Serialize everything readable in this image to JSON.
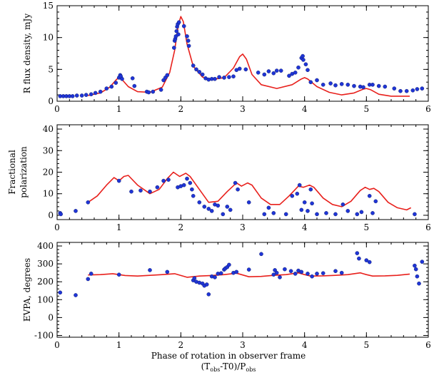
{
  "chart_data": [
    {
      "type": "scatter",
      "ylabel": "R flux density, mJy",
      "xlim": [
        0,
        6
      ],
      "ylim": [
        0,
        15
      ],
      "xticks": [
        0,
        1,
        2,
        3,
        4,
        5,
        6
      ],
      "yticks": [
        0,
        5,
        10,
        15
      ],
      "model": {
        "color": "#e8201c",
        "points": [
          [
            0.5,
            0.9
          ],
          [
            0.7,
            1.3
          ],
          [
            0.85,
            2.2
          ],
          [
            0.95,
            3.3
          ],
          [
            1.0,
            3.8
          ],
          [
            1.05,
            3.4
          ],
          [
            1.15,
            2.3
          ],
          [
            1.3,
            1.5
          ],
          [
            1.5,
            1.4
          ],
          [
            1.7,
            2.2
          ],
          [
            1.82,
            4.5
          ],
          [
            1.9,
            8.0
          ],
          [
            1.96,
            12.0
          ],
          [
            2.0,
            13.3
          ],
          [
            2.04,
            12.5
          ],
          [
            2.1,
            9.0
          ],
          [
            2.2,
            5.5
          ],
          [
            2.35,
            3.8
          ],
          [
            2.5,
            3.4
          ],
          [
            2.7,
            3.7
          ],
          [
            2.85,
            5.2
          ],
          [
            2.95,
            7.0
          ],
          [
            3.0,
            7.4
          ],
          [
            3.06,
            6.6
          ],
          [
            3.15,
            4.2
          ],
          [
            3.3,
            2.6
          ],
          [
            3.55,
            2.0
          ],
          [
            3.8,
            2.6
          ],
          [
            3.95,
            3.5
          ],
          [
            4.0,
            3.7
          ],
          [
            4.05,
            3.5
          ],
          [
            4.2,
            2.3
          ],
          [
            4.4,
            1.4
          ],
          [
            4.6,
            1.0
          ],
          [
            4.8,
            1.3
          ],
          [
            4.95,
            1.9
          ],
          [
            5.0,
            2.0
          ],
          [
            5.07,
            1.8
          ],
          [
            5.2,
            1.1
          ],
          [
            5.4,
            0.8
          ],
          [
            5.7,
            0.8
          ]
        ]
      },
      "observations": {
        "color": "#1f35d6",
        "points": [
          [
            0.05,
            0.8
          ],
          [
            0.1,
            0.8
          ],
          [
            0.15,
            0.8
          ],
          [
            0.2,
            0.8
          ],
          [
            0.25,
            0.8
          ],
          [
            0.32,
            0.9
          ],
          [
            0.4,
            0.9
          ],
          [
            0.47,
            1.0
          ],
          [
            0.55,
            1.1
          ],
          [
            0.62,
            1.3
          ],
          [
            0.7,
            1.5
          ],
          [
            0.8,
            2.0
          ],
          [
            0.88,
            2.3
          ],
          [
            0.95,
            2.9
          ],
          [
            1.0,
            3.7
          ],
          [
            1.02,
            4.1
          ],
          [
            1.03,
            3.9
          ],
          [
            1.05,
            3.5
          ],
          [
            1.22,
            3.6
          ],
          [
            1.25,
            2.4
          ],
          [
            1.45,
            1.5
          ],
          [
            1.48,
            1.4
          ],
          [
            1.55,
            1.5
          ],
          [
            1.68,
            1.8
          ],
          [
            1.72,
            3.3
          ],
          [
            1.75,
            3.7
          ],
          [
            1.78,
            4.1
          ],
          [
            1.89,
            8.4
          ],
          [
            1.9,
            9.5
          ],
          [
            1.91,
            9.8
          ],
          [
            1.92,
            10.2
          ],
          [
            1.93,
            11.0
          ],
          [
            1.94,
            11.7
          ],
          [
            1.95,
            12.1
          ],
          [
            1.96,
            10.5
          ],
          [
            1.97,
            12.4
          ],
          [
            2.05,
            11.8
          ],
          [
            2.1,
            10.2
          ],
          [
            2.12,
            9.5
          ],
          [
            2.13,
            8.7
          ],
          [
            2.2,
            5.6
          ],
          [
            2.25,
            5.0
          ],
          [
            2.3,
            4.6
          ],
          [
            2.35,
            4.2
          ],
          [
            2.4,
            3.6
          ],
          [
            2.45,
            3.4
          ],
          [
            2.5,
            3.5
          ],
          [
            2.55,
            3.5
          ],
          [
            2.62,
            3.8
          ],
          [
            2.7,
            3.7
          ],
          [
            2.78,
            3.8
          ],
          [
            2.85,
            3.9
          ],
          [
            2.9,
            4.9
          ],
          [
            2.95,
            5.1
          ],
          [
            3.05,
            5.0
          ],
          [
            3.25,
            4.5
          ],
          [
            3.35,
            4.2
          ],
          [
            3.42,
            4.7
          ],
          [
            3.5,
            4.4
          ],
          [
            3.55,
            4.8
          ],
          [
            3.62,
            4.8
          ],
          [
            3.75,
            4.0
          ],
          [
            3.8,
            4.3
          ],
          [
            3.85,
            4.5
          ],
          [
            3.9,
            5.3
          ],
          [
            3.95,
            6.8
          ],
          [
            3.97,
            7.1
          ],
          [
            3.98,
            6.5
          ],
          [
            4.02,
            5.8
          ],
          [
            4.05,
            4.9
          ],
          [
            4.1,
            3.0
          ],
          [
            4.2,
            3.3
          ],
          [
            4.3,
            2.6
          ],
          [
            4.42,
            2.8
          ],
          [
            4.5,
            2.5
          ],
          [
            4.6,
            2.7
          ],
          [
            4.7,
            2.6
          ],
          [
            4.8,
            2.4
          ],
          [
            4.9,
            2.3
          ],
          [
            4.95,
            2.2
          ],
          [
            5.05,
            2.6
          ],
          [
            5.1,
            2.6
          ],
          [
            5.2,
            2.4
          ],
          [
            5.3,
            2.3
          ],
          [
            5.45,
            2.0
          ],
          [
            5.55,
            1.6
          ],
          [
            5.65,
            1.6
          ],
          [
            5.75,
            1.7
          ],
          [
            5.82,
            1.9
          ],
          [
            5.9,
            2.0
          ]
        ]
      }
    },
    {
      "type": "scatter",
      "ylabel": "Fractional polarization",
      "xlim": [
        0,
        6
      ],
      "ylim": [
        -2,
        42
      ],
      "xticks": [
        0,
        1,
        2,
        3,
        4,
        5,
        6
      ],
      "yticks": [
        0,
        10,
        20,
        30,
        40
      ],
      "model": {
        "color": "#e8201c",
        "points": [
          [
            0.5,
            6
          ],
          [
            0.65,
            9
          ],
          [
            0.8,
            14
          ],
          [
            0.92,
            17.5
          ],
          [
            1.0,
            16
          ],
          [
            1.08,
            18
          ],
          [
            1.15,
            18.5
          ],
          [
            1.3,
            14
          ],
          [
            1.5,
            10
          ],
          [
            1.65,
            12
          ],
          [
            1.78,
            17
          ],
          [
            1.88,
            20
          ],
          [
            1.98,
            18
          ],
          [
            2.08,
            19.5
          ],
          [
            2.15,
            18
          ],
          [
            2.3,
            12
          ],
          [
            2.45,
            6
          ],
          [
            2.6,
            6.5
          ],
          [
            2.75,
            11
          ],
          [
            2.9,
            15
          ],
          [
            2.98,
            13.5
          ],
          [
            3.08,
            15
          ],
          [
            3.15,
            14
          ],
          [
            3.3,
            8
          ],
          [
            3.45,
            5
          ],
          [
            3.6,
            5
          ],
          [
            3.75,
            9
          ],
          [
            3.9,
            13.5
          ],
          [
            3.98,
            13
          ],
          [
            4.08,
            14
          ],
          [
            4.15,
            13
          ],
          [
            4.3,
            8
          ],
          [
            4.45,
            5
          ],
          [
            4.6,
            4
          ],
          [
            4.75,
            6.5
          ],
          [
            4.9,
            11.5
          ],
          [
            4.98,
            13
          ],
          [
            5.05,
            12
          ],
          [
            5.12,
            12.5
          ],
          [
            5.2,
            11
          ],
          [
            5.35,
            6
          ],
          [
            5.5,
            3.5
          ],
          [
            5.65,
            2.5
          ],
          [
            5.72,
            3.5
          ]
        ]
      },
      "observations": {
        "color": "#1f35d6",
        "points": [
          [
            0.05,
            1
          ],
          [
            0.06,
            0.5
          ],
          [
            0.3,
            2
          ],
          [
            0.5,
            6
          ],
          [
            1.0,
            16
          ],
          [
            1.2,
            11
          ],
          [
            1.35,
            11.5
          ],
          [
            1.5,
            11
          ],
          [
            1.62,
            13
          ],
          [
            1.72,
            16
          ],
          [
            1.8,
            16.5
          ],
          [
            1.95,
            13
          ],
          [
            2.0,
            13.5
          ],
          [
            2.05,
            14
          ],
          [
            2.1,
            17
          ],
          [
            2.15,
            15
          ],
          [
            2.18,
            12
          ],
          [
            2.2,
            9
          ],
          [
            2.3,
            6
          ],
          [
            2.38,
            4
          ],
          [
            2.45,
            3
          ],
          [
            2.5,
            2
          ],
          [
            2.55,
            5
          ],
          [
            2.6,
            4.5
          ],
          [
            2.68,
            0.5
          ],
          [
            2.75,
            4
          ],
          [
            2.8,
            2.5
          ],
          [
            2.88,
            15
          ],
          [
            2.92,
            12
          ],
          [
            3.1,
            6
          ],
          [
            3.35,
            0.5
          ],
          [
            3.42,
            3.5
          ],
          [
            3.5,
            1
          ],
          [
            3.7,
            0.5
          ],
          [
            3.8,
            9
          ],
          [
            3.88,
            10
          ],
          [
            3.92,
            14
          ],
          [
            3.95,
            2.5
          ],
          [
            4.0,
            6
          ],
          [
            4.05,
            2
          ],
          [
            4.1,
            12
          ],
          [
            4.12,
            5.5
          ],
          [
            4.2,
            0.5
          ],
          [
            4.35,
            1
          ],
          [
            4.5,
            0.5
          ],
          [
            4.62,
            5
          ],
          [
            4.7,
            2
          ],
          [
            4.85,
            0.5
          ],
          [
            4.92,
            1.5
          ],
          [
            5.05,
            9
          ],
          [
            5.1,
            1
          ],
          [
            5.15,
            6.5
          ],
          [
            5.78,
            0.5
          ]
        ]
      }
    },
    {
      "type": "scatter",
      "ylabel": "EVPA, degrees",
      "xlabel": "Phase of rotation in observer frame",
      "xlabel2": "(T₀ₑₛ-T0)/P₀ₑₛ",
      "xlabel2_parts": [
        "(T",
        "obs",
        "-T0)/P",
        "obs"
      ],
      "xlim": [
        0,
        6
      ],
      "ylim": [
        -110,
        420
      ],
      "xticks": [
        0,
        1,
        2,
        3,
        4,
        5,
        6
      ],
      "yticks": [
        -100,
        0,
        100,
        200,
        300,
        400
      ],
      "model": {
        "color": "#e8201c",
        "points": [
          [
            0.5,
            238
          ],
          [
            0.7,
            240
          ],
          [
            0.9,
            245
          ],
          [
            1.0,
            240
          ],
          [
            1.1,
            235
          ],
          [
            1.3,
            232
          ],
          [
            1.5,
            236
          ],
          [
            1.7,
            240
          ],
          [
            1.9,
            245
          ],
          [
            2.0,
            235
          ],
          [
            2.1,
            225
          ],
          [
            2.3,
            232
          ],
          [
            2.5,
            235
          ],
          [
            2.7,
            240
          ],
          [
            2.9,
            248
          ],
          [
            3.0,
            238
          ],
          [
            3.1,
            228
          ],
          [
            3.3,
            230
          ],
          [
            3.5,
            236
          ],
          [
            3.7,
            240
          ],
          [
            3.9,
            250
          ],
          [
            4.0,
            240
          ],
          [
            4.1,
            232
          ],
          [
            4.3,
            233
          ],
          [
            4.5,
            236
          ],
          [
            4.7,
            240
          ],
          [
            4.9,
            250
          ],
          [
            5.0,
            240
          ],
          [
            5.1,
            232
          ],
          [
            5.3,
            233
          ],
          [
            5.5,
            236
          ],
          [
            5.7,
            243
          ]
        ]
      },
      "observations": {
        "color": "#1f35d6",
        "points": [
          [
            0.05,
            140
          ],
          [
            0.3,
            125
          ],
          [
            0.5,
            215
          ],
          [
            0.55,
            245
          ],
          [
            1.0,
            240
          ],
          [
            1.5,
            265
          ],
          [
            1.78,
            255
          ],
          [
            2.2,
            208
          ],
          [
            2.22,
            220
          ],
          [
            2.25,
            200
          ],
          [
            2.3,
            195
          ],
          [
            2.35,
            190
          ],
          [
            2.38,
            178
          ],
          [
            2.42,
            185
          ],
          [
            2.45,
            130
          ],
          [
            2.5,
            230
          ],
          [
            2.55,
            225
          ],
          [
            2.6,
            245
          ],
          [
            2.65,
            248
          ],
          [
            2.7,
            268
          ],
          [
            2.72,
            275
          ],
          [
            2.75,
            282
          ],
          [
            2.78,
            295
          ],
          [
            2.85,
            250
          ],
          [
            2.9,
            255
          ],
          [
            3.1,
            268
          ],
          [
            3.3,
            355
          ],
          [
            3.5,
            240
          ],
          [
            3.52,
            265
          ],
          [
            3.55,
            250
          ],
          [
            3.6,
            225
          ],
          [
            3.68,
            270
          ],
          [
            3.78,
            260
          ],
          [
            3.85,
            245
          ],
          [
            3.9,
            262
          ],
          [
            3.95,
            255
          ],
          [
            4.05,
            245
          ],
          [
            4.12,
            230
          ],
          [
            4.2,
            245
          ],
          [
            4.3,
            248
          ],
          [
            4.5,
            260
          ],
          [
            4.6,
            250
          ],
          [
            4.85,
            360
          ],
          [
            4.88,
            330
          ],
          [
            5.0,
            320
          ],
          [
            5.05,
            310
          ],
          [
            5.78,
            290
          ],
          [
            5.8,
            270
          ],
          [
            5.82,
            230
          ],
          [
            5.85,
            190
          ],
          [
            5.9,
            312
          ]
        ]
      }
    }
  ]
}
